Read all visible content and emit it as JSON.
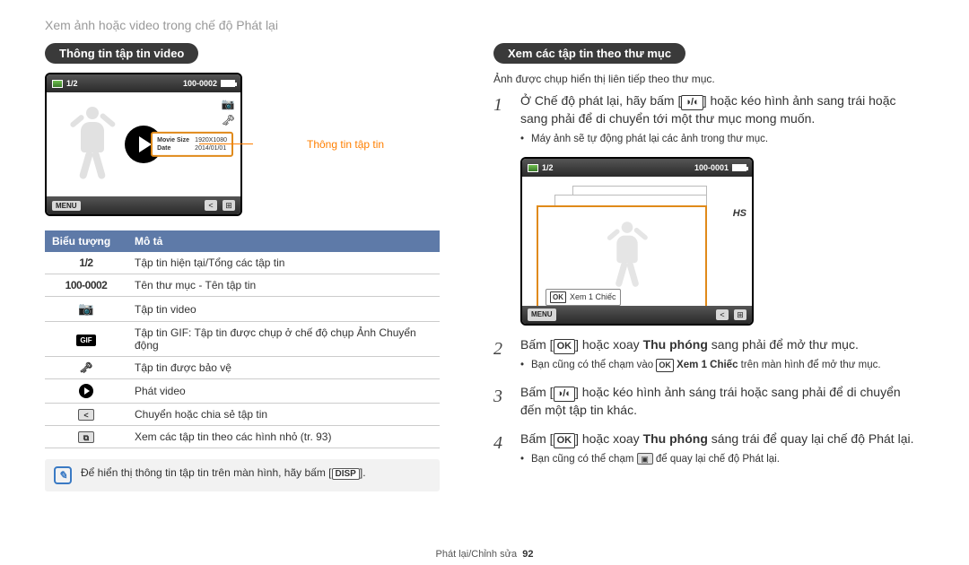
{
  "breadcrumb": "Xem ảnh hoặc video trong chế độ Phát lại",
  "left": {
    "header_pill": "Thông tin tập tin video",
    "callout": "Thông tin tập tin",
    "screen": {
      "counter": "1/2",
      "folder": "100-0002",
      "info_rows": [
        {
          "lbl": "Movie Size",
          "val": "1920X1080"
        },
        {
          "lbl": "Date",
          "val": "2014/01/01"
        }
      ],
      "menu": "MENU"
    },
    "table": {
      "h1": "Biểu tượng",
      "h2": "Mô tả",
      "rows": [
        {
          "icon": "1/2",
          "iconType": "lcd",
          "desc": "Tập tin hiện tại/Tổng các tập tin"
        },
        {
          "icon": "100-0002",
          "iconType": "lcd",
          "desc": "Tên thư mục - Tên tập tin"
        },
        {
          "icon": "cam",
          "iconType": "cam",
          "desc": "Tập tin video"
        },
        {
          "icon": "GIF",
          "iconType": "gif",
          "desc": "Tập tin GIF: Tập tin được chụp ở chế độ chụp Ảnh Chuyển động"
        },
        {
          "icon": "key",
          "iconType": "key",
          "desc": "Tập tin được bảo vệ"
        },
        {
          "icon": "play",
          "iconType": "play",
          "desc": "Phát video"
        },
        {
          "icon": "<",
          "iconType": "box",
          "desc": "Chuyển hoặc chia sẻ tập tin"
        },
        {
          "icon": "⧉",
          "iconType": "box",
          "desc": "Xem các tập tin theo các hình nhỏ (tr. 93)"
        }
      ]
    },
    "tip": {
      "pre": "Để hiển thị thông tin tập tin trên màn hình, hãy bấm [",
      "key": "DISP",
      "post": "]."
    }
  },
  "right": {
    "header_pill": "Xem các tập tin theo thư mục",
    "subnote": "Ảnh được chụp hiển thị liên tiếp theo thư mục.",
    "screen": {
      "counter": "1/2",
      "folder": "100-0001",
      "side": "HS",
      "ok_label": "OK",
      "ok_text": "Xem 1 Chiếc",
      "menu": "MENU"
    },
    "steps": [
      {
        "n": "1",
        "text_pre": "Ở Chế độ phát lại, hãy bấm [",
        "key1": "◑/◐",
        "text_mid": "] hoặc kéo hình ảnh sang trái hoặc sang phải để di chuyển tới một thư mục mong muốn.",
        "subs": [
          "Máy ảnh sẽ tự động phát lại các ảnh trong thư mục."
        ]
      },
      {
        "n": "2",
        "text_pre": "Bấm [",
        "key1": "OK",
        "text_mid": "] hoặc xoay ",
        "bold": "Thu phóng",
        "text_post": " sang phải để mở thư mục.",
        "subs_html": "Bạn cũng có thể chạm vào <span class='inline-key' style='font-size:9px;padding:0 2px'>OK</span> <b>Xem 1 Chiếc</b> trên màn hình để mở thư mục."
      },
      {
        "n": "3",
        "text_pre": "Bấm [",
        "key1": "◑/◐",
        "text_mid": "] hoặc kéo hình ảnh sáng trái hoặc sang phải để di chuyển đến một tập tin khác."
      },
      {
        "n": "4",
        "text_pre": "Bấm [",
        "key1": "OK",
        "text_mid": "] hoặc xoay ",
        "bold": "Thu phóng",
        "text_post": " sáng trái để quay lại chế độ Phát lại.",
        "subs_html": "Bạn cũng có thể chạm <span class='box-icon'>▣</span> để quay lại chế độ Phát lại."
      }
    ]
  },
  "footer": {
    "section": "Phát lại/Chỉnh sửa",
    "page": "92"
  }
}
